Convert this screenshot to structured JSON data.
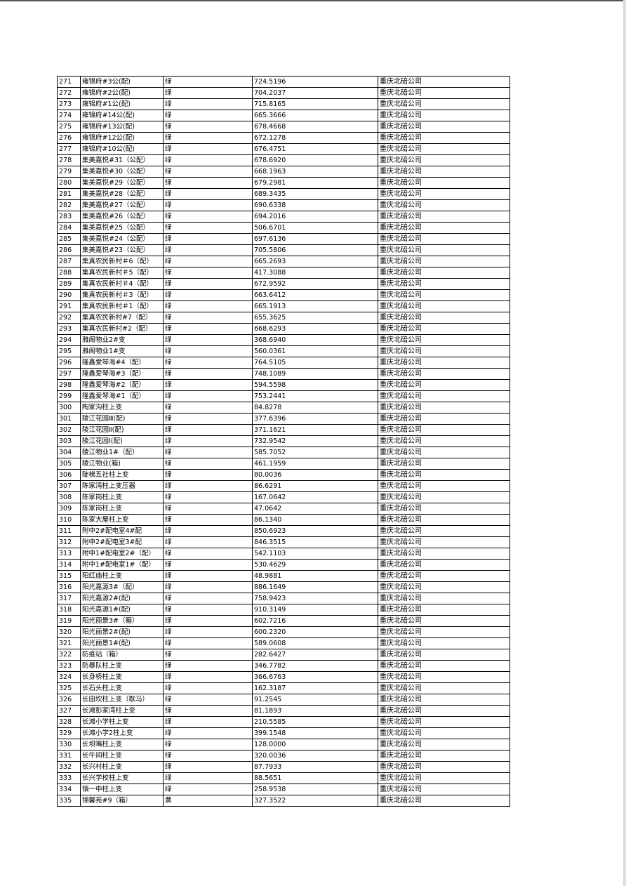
{
  "table": {
    "rows": [
      [
        "271",
        "雍锦府#3公(配)",
        "绿",
        "724.5196",
        "重庆北碚公司"
      ],
      [
        "272",
        "雍锦府#2公(配)",
        "绿",
        "704.2037",
        "重庆北碚公司"
      ],
      [
        "273",
        "雍锦府#1公(配)",
        "绿",
        "715.8165",
        "重庆北碚公司"
      ],
      [
        "274",
        "雍锦府#14公(配)",
        "绿",
        "665.3666",
        "重庆北碚公司"
      ],
      [
        "275",
        "雍锦府#13公(配)",
        "绿",
        "678.4668",
        "重庆北碚公司"
      ],
      [
        "276",
        "雍锦府#12公(配)",
        "绿",
        "672.1278",
        "重庆北碚公司"
      ],
      [
        "277",
        "雍锦府#10公(配)",
        "绿",
        "676.4751",
        "重庆北碚公司"
      ],
      [
        "278",
        "集美嘉悦#31（公配）",
        "绿",
        "678.6920",
        "重庆北碚公司"
      ],
      [
        "279",
        "集美嘉悦#30（公配）",
        "绿",
        "668.1963",
        "重庆北碚公司"
      ],
      [
        "280",
        "集美嘉悦#29（公配）",
        "绿",
        "679.2981",
        "重庆北碚公司"
      ],
      [
        "281",
        "集美嘉悦#28（公配）",
        "绿",
        "689.3435",
        "重庆北碚公司"
      ],
      [
        "282",
        "集美嘉悦#27（公配）",
        "绿",
        "690.6338",
        "重庆北碚公司"
      ],
      [
        "283",
        "集美嘉悦#26（公配）",
        "绿",
        "694.2016",
        "重庆北碚公司"
      ],
      [
        "284",
        "集美嘉悦#25（公配）",
        "绿",
        "506.6701",
        "重庆北碚公司"
      ],
      [
        "285",
        "集美嘉悦#24（公配）",
        "绿",
        "697.6136",
        "重庆北碚公司"
      ],
      [
        "286",
        "集美嘉悦#23（公配）",
        "绿",
        "705.5806",
        "重庆北碚公司"
      ],
      [
        "287",
        "集真农民新村＃6（配）",
        "绿",
        "665.2693",
        "重庆北碚公司"
      ],
      [
        "288",
        "集真农民新村＃5（配）",
        "绿",
        "417.3088",
        "重庆北碚公司"
      ],
      [
        "289",
        "集真农民新村＃4（配）",
        "绿",
        "672.9592",
        "重庆北碚公司"
      ],
      [
        "290",
        "集真农民新村＃3（配）",
        "绿",
        "663.6412",
        "重庆北碚公司"
      ],
      [
        "291",
        "集真农民新村＃1（配）",
        "绿",
        "665.1913",
        "重庆北碚公司"
      ],
      [
        "292",
        "集真农民新村#7（配）",
        "绿",
        "655.3625",
        "重庆北碚公司"
      ],
      [
        "293",
        "集真农民新村#2（配）",
        "绿",
        "668.6293",
        "重庆北碚公司"
      ],
      [
        "294",
        "雅阁物业2#变",
        "绿",
        "368.6940",
        "重庆北碚公司"
      ],
      [
        "295",
        "雅阁物业1#变",
        "绿",
        "560.0361",
        "重庆北碚公司"
      ],
      [
        "296",
        "隆鑫爱琴海#4（配）",
        "绿",
        "764.5105",
        "重庆北碚公司"
      ],
      [
        "297",
        "隆鑫爱琴海#3（配）",
        "绿",
        "748.1089",
        "重庆北碚公司"
      ],
      [
        "298",
        "隆鑫爱琴海#2（配）",
        "绿",
        "594.5598",
        "重庆北碚公司"
      ],
      [
        "299",
        "隆鑫爱琴海#1（配）",
        "绿",
        "753.2441",
        "重庆北碚公司"
      ],
      [
        "300",
        "陶家沟柱上变",
        "绿",
        "84.8278",
        "重庆北碚公司"
      ],
      [
        "301",
        "陵江花园Ⅲ(配)",
        "绿",
        "377.6396",
        "重庆北碚公司"
      ],
      [
        "302",
        "陵江花园Ⅱ(配)",
        "绿",
        "371.1621",
        "重庆北碚公司"
      ],
      [
        "303",
        "陵江花园Ⅰ(配)",
        "绿",
        "732.9542",
        "重庆北碚公司"
      ],
      [
        "304",
        "陵江物业1#（配）",
        "绿",
        "585.7052",
        "重庆北碚公司"
      ],
      [
        "305",
        "陵江物业(箱)",
        "绿",
        "461.1959",
        "重庆北碚公司"
      ],
      [
        "306",
        "陡梯五社柱上变",
        "绿",
        "80.0036",
        "重庆北碚公司"
      ],
      [
        "307",
        "陈家湾柱上变压器",
        "绿",
        "86.6291",
        "重庆北碚公司"
      ],
      [
        "308",
        "陈家岗柱上变",
        "绿",
        "167.0642",
        "重庆北碚公司"
      ],
      [
        "309",
        "陈家岗柱上变",
        "绿",
        "47.0642",
        "重庆北碚公司"
      ],
      [
        "310",
        "陈家大屋柱上变",
        "绿",
        "86.1340",
        "重庆北碚公司"
      ],
      [
        "311",
        "附中2#配电室4#配",
        "绿",
        "850.6923",
        "重庆北碚公司"
      ],
      [
        "312",
        "附中2#配电室3#配",
        "绿",
        "846.3515",
        "重庆北碚公司"
      ],
      [
        "313",
        "附中1#配电室2#（配）",
        "绿",
        "542.1103",
        "重庆北碚公司"
      ],
      [
        "314",
        "附中1#配电室1#（配）",
        "绿",
        "530.4629",
        "重庆北碚公司"
      ],
      [
        "315",
        "阳红庙柱上变",
        "绿",
        "48.9881",
        "重庆北碚公司"
      ],
      [
        "316",
        "阳光嘉源3#（配）",
        "绿",
        "886.1649",
        "重庆北碚公司"
      ],
      [
        "317",
        "阳光嘉源2#(配)",
        "绿",
        "758.9423",
        "重庆北碚公司"
      ],
      [
        "318",
        "阳光嘉源1#(配)",
        "绿",
        "910.3149",
        "重庆北碚公司"
      ],
      [
        "319",
        "阳光丽景3#（箱）",
        "绿",
        "602.7216",
        "重庆北碚公司"
      ],
      [
        "320",
        "阳光丽景2#(配)",
        "绿",
        "600.2320",
        "重庆北碚公司"
      ],
      [
        "321",
        "阳光丽景1#(配)",
        "绿",
        "589.0608",
        "重庆北碚公司"
      ],
      [
        "322",
        "防疫站（箱）",
        "绿",
        "282.6427",
        "重庆北碚公司"
      ],
      [
        "323",
        "防暴队柱上变",
        "绿",
        "346.7782",
        "重庆北碚公司"
      ],
      [
        "324",
        "长身桥柱上变",
        "绿",
        "366.6763",
        "重庆北碚公司"
      ],
      [
        "325",
        "长石头柱上变",
        "绿",
        "162.3187",
        "重庆北碚公司"
      ],
      [
        "326",
        "长田坎柱上变（歇马）",
        "绿",
        "91.2545",
        "重庆北碚公司"
      ],
      [
        "327",
        "长滩彭家湾柱上变",
        "绿",
        "81.1893",
        "重庆北碚公司"
      ],
      [
        "328",
        "长滩小学柱上变",
        "绿",
        "210.5585",
        "重庆北碚公司"
      ],
      [
        "329",
        "长滩小学2柱上变",
        "绿",
        "399.1548",
        "重庆北碚公司"
      ],
      [
        "330",
        "长坝嘴柱上变",
        "绿",
        "128.0000",
        "重庆北碚公司"
      ],
      [
        "331",
        "长午间柱上变",
        "绿",
        "320.0036",
        "重庆北碚公司"
      ],
      [
        "332",
        "长兴村柱上变",
        "绿",
        "87.7933",
        "重庆北碚公司"
      ],
      [
        "333",
        "长兴学校柱上变",
        "绿",
        "88.5651",
        "重庆北碚公司"
      ],
      [
        "334",
        "镇一中柱上变",
        "绿",
        "258.9538",
        "重庆北碚公司"
      ],
      [
        "335",
        "锦馨苑#9（箱）",
        "黄",
        "327.3522",
        "重庆北碚公司"
      ]
    ]
  }
}
